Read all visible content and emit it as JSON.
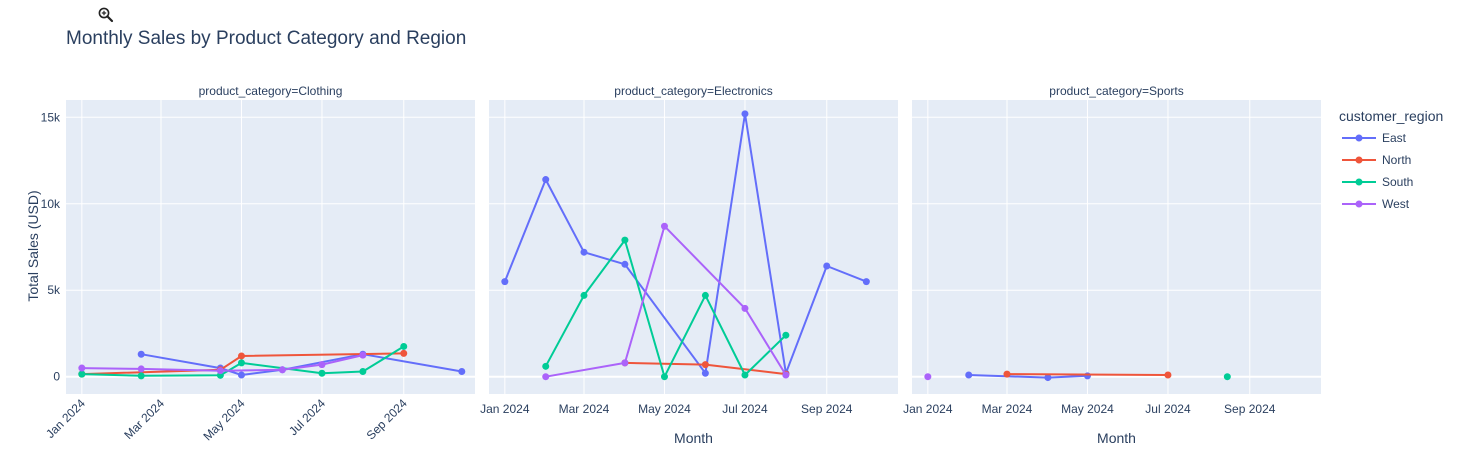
{
  "toolbar": {
    "icon": "zoom-in-icon"
  },
  "chart_data": {
    "type": "line",
    "title": "Monthly Sales by Product Category and Region",
    "ylabel": "Total Sales (USD)",
    "xlabel": "Month",
    "ylim": [
      -1000,
      16000
    ],
    "yticks": [
      0,
      5000,
      10000,
      15000
    ],
    "ytick_labels": [
      "0",
      "5k",
      "10k",
      "15k"
    ],
    "xlim": [
      "2023-12-20",
      "2024-10-25"
    ],
    "xticks": [
      "2024-01-01",
      "2024-03-01",
      "2024-05-01",
      "2024-07-01",
      "2024-09-01"
    ],
    "xtick_labels": [
      "Jan 2024",
      "Mar 2024",
      "May 2024",
      "Jul 2024",
      "Sep 2024"
    ],
    "legend": {
      "title": "customer_region",
      "placement": "right"
    },
    "grid": true,
    "colors": {
      "East": "#636efa",
      "North": "#ef553b",
      "South": "#00cc96",
      "West": "#ab63fa"
    },
    "panels": [
      {
        "title": "product_category=Clothing",
        "xticks_rotated": true,
        "series": [
          {
            "name": "East",
            "points": [
              [
                "2024-02-15",
                1300
              ],
              [
                "2024-04-15",
                500
              ],
              [
                "2024-05-01",
                100
              ],
              [
                "2024-06-01",
                400
              ],
              [
                "2024-08-01",
                1300
              ],
              [
                "2024-10-15",
                300
              ]
            ]
          },
          {
            "name": "North",
            "points": [
              [
                "2024-01-01",
                150
              ],
              [
                "2024-04-15",
                400
              ],
              [
                "2024-05-01",
                1200
              ],
              [
                "2024-09-01",
                1350
              ]
            ]
          },
          {
            "name": "South",
            "points": [
              [
                "2024-01-01",
                150
              ],
              [
                "2024-02-15",
                50
              ],
              [
                "2024-04-15",
                80
              ],
              [
                "2024-05-01",
                800
              ],
              [
                "2024-07-01",
                200
              ],
              [
                "2024-08-01",
                300
              ],
              [
                "2024-09-01",
                1750
              ]
            ]
          },
          {
            "name": "West",
            "points": [
              [
                "2024-01-01",
                500
              ],
              [
                "2024-02-15",
                450
              ],
              [
                "2024-04-15",
                350
              ],
              [
                "2024-06-01",
                400
              ],
              [
                "2024-07-01",
                700
              ],
              [
                "2024-08-01",
                1250
              ]
            ]
          }
        ]
      },
      {
        "title": "product_category=Electronics",
        "xticks_rotated": false,
        "series": [
          {
            "name": "East",
            "points": [
              [
                "2024-01-01",
                5500
              ],
              [
                "2024-02-01",
                11400
              ],
              [
                "2024-03-01",
                7200
              ],
              [
                "2024-04-01",
                6500
              ],
              [
                "2024-06-01",
                200
              ],
              [
                "2024-07-01",
                15200
              ],
              [
                "2024-08-01",
                200
              ],
              [
                "2024-09-01",
                6400
              ],
              [
                "2024-10-01",
                5500
              ]
            ]
          },
          {
            "name": "North",
            "points": [
              [
                "2024-04-01",
                800
              ],
              [
                "2024-06-01",
                700
              ],
              [
                "2024-08-01",
                150
              ]
            ]
          },
          {
            "name": "South",
            "points": [
              [
                "2024-02-01",
                600
              ],
              [
                "2024-03-01",
                4700
              ],
              [
                "2024-04-01",
                7900
              ],
              [
                "2024-05-01",
                0
              ],
              [
                "2024-06-01",
                4700
              ],
              [
                "2024-07-01",
                100
              ],
              [
                "2024-08-01",
                2400
              ]
            ]
          },
          {
            "name": "West",
            "points": [
              [
                "2024-02-01",
                0
              ],
              [
                "2024-04-01",
                800
              ],
              [
                "2024-05-01",
                8700
              ],
              [
                "2024-07-01",
                3950
              ],
              [
                "2024-08-01",
                100
              ]
            ]
          }
        ]
      },
      {
        "title": "product_category=Sports",
        "xticks_rotated": false,
        "series": [
          {
            "name": "East",
            "points": [
              [
                "2024-02-01",
                100
              ],
              [
                "2024-04-01",
                -50
              ],
              [
                "2024-05-01",
                50
              ]
            ]
          },
          {
            "name": "North",
            "points": [
              [
                "2024-03-01",
                150
              ],
              [
                "2024-07-01",
                100
              ]
            ]
          },
          {
            "name": "South",
            "points": [
              [
                "2024-08-15",
                0
              ]
            ]
          },
          {
            "name": "West",
            "points": [
              [
                "2024-01-01",
                0
              ]
            ]
          }
        ]
      }
    ]
  }
}
